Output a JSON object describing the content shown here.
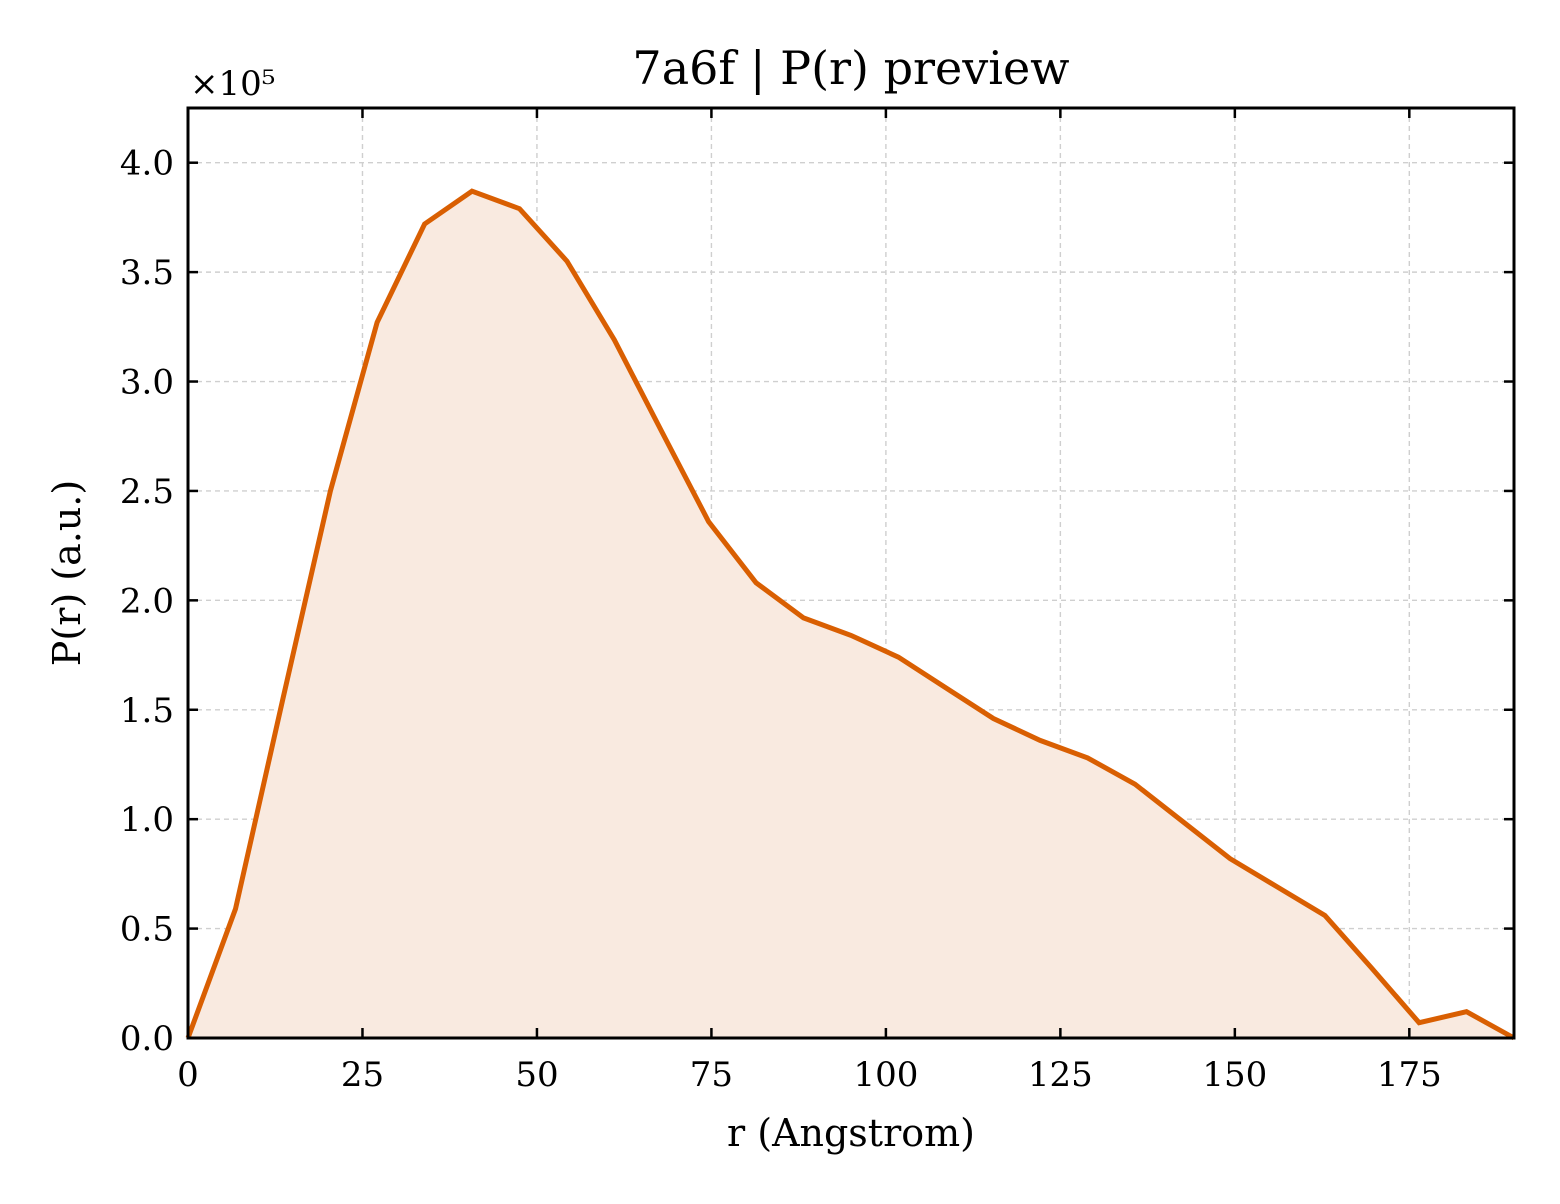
{
  "chart_data": {
    "type": "area",
    "title": "7a6f | P(r) preview",
    "xlabel": "r (Angstrom)",
    "ylabel": "P(r) (a.u.)",
    "y_scale_label": "×10⁵",
    "xlim": [
      0,
      190
    ],
    "ylim": [
      0,
      4.25
    ],
    "y_multiplier": 100000,
    "grid": true,
    "legend": "none",
    "line_color": "#d95f02",
    "fill_color": "#f9eae0",
    "xticks": [
      0,
      25,
      50,
      75,
      100,
      125,
      150,
      175
    ],
    "xtick_labels": [
      "0",
      "25",
      "50",
      "75",
      "100",
      "125",
      "150",
      "175"
    ],
    "yticks": [
      0.0,
      0.5,
      1.0,
      1.5,
      2.0,
      2.5,
      3.0,
      3.5,
      4.0
    ],
    "ytick_labels": [
      "0.0",
      "0.5",
      "1.0",
      "1.5",
      "2.0",
      "2.5",
      "3.0",
      "3.5",
      "4.0"
    ],
    "series": [
      {
        "x": [
          0,
          6.8,
          13.6,
          20.4,
          27.1,
          33.9,
          40.7,
          47.5,
          54.3,
          61.1,
          67.9,
          74.6,
          81.4,
          88.2,
          95.0,
          101.8,
          108.6,
          115.4,
          122.1,
          128.9,
          135.7,
          142.5,
          149.3,
          156.1,
          162.9,
          169.6,
          176.4,
          183.2,
          190.0
        ],
        "values": [
          0.0,
          0.59,
          1.55,
          2.5,
          3.27,
          3.72,
          3.87,
          3.79,
          3.55,
          3.19,
          2.77,
          2.36,
          2.08,
          1.92,
          1.84,
          1.74,
          1.6,
          1.46,
          1.36,
          1.28,
          1.16,
          0.99,
          0.82,
          0.69,
          0.56,
          0.32,
          0.07,
          0.12,
          0.0
        ]
      }
    ]
  }
}
